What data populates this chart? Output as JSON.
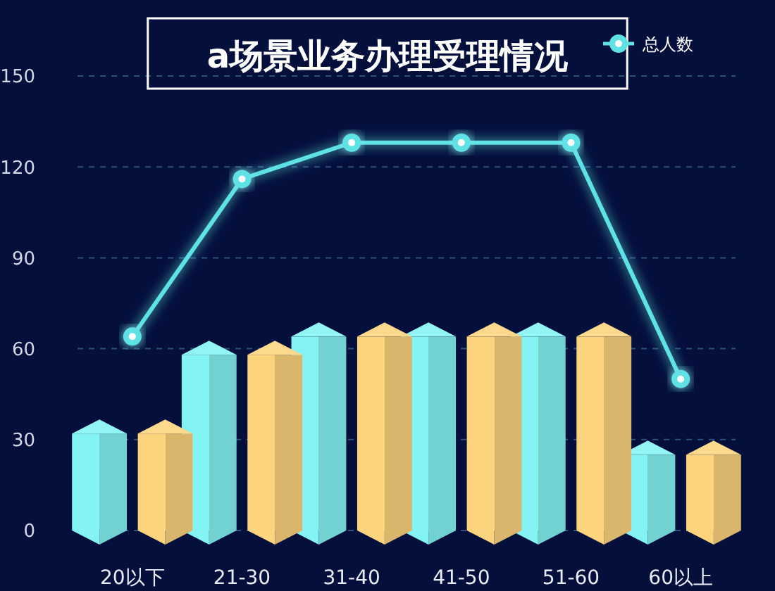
{
  "chart_data": {
    "type": "bar",
    "title": "a场景业务办理受理情况",
    "categories": [
      "20以下",
      "21-30",
      "31-40",
      "41-50",
      "51-60",
      "60以上"
    ],
    "series": [
      {
        "color": "#84f3f3",
        "values": [
          32,
          58,
          64,
          64,
          64,
          25
        ]
      },
      {
        "color": "#fdd47e",
        "values": [
          32,
          58,
          64,
          64,
          64,
          25
        ]
      },
      {
        "name": "总人数",
        "type": "line",
        "color": "#5ee2e6",
        "values": [
          64,
          116,
          128,
          128,
          128,
          50
        ]
      }
    ],
    "ylim": [
      0,
      150
    ],
    "yticks": [
      0,
      30,
      60,
      90,
      120,
      150
    ],
    "grid": "y",
    "marker": "circle",
    "legend": "top right"
  }
}
